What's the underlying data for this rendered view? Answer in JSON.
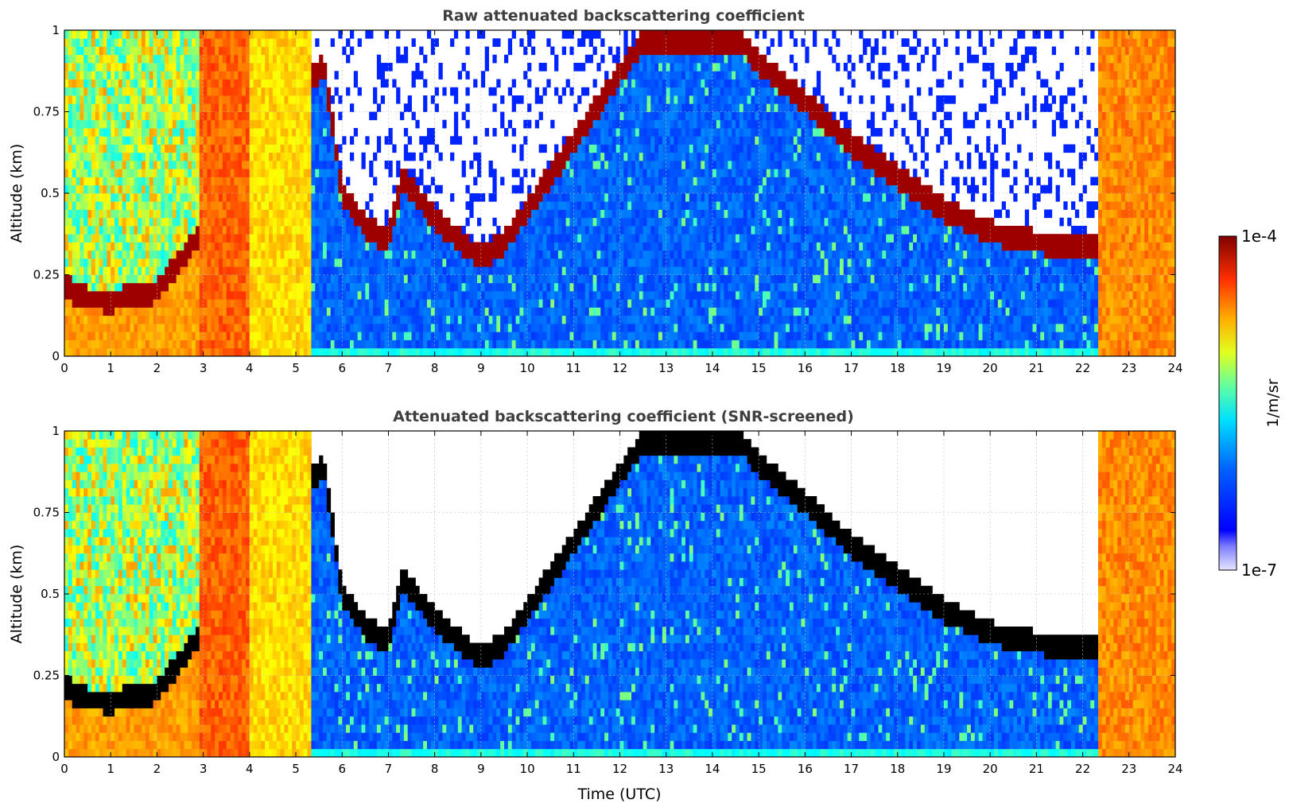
{
  "chart_data": [
    {
      "type": "heatmap",
      "title": "Raw attenuated backscattering coefficient",
      "xlabel": "",
      "ylabel": "Altitude (km)",
      "xlim": [
        0,
        24
      ],
      "ylim": [
        0,
        1
      ],
      "x_ticks": [
        "0",
        "1",
        "2",
        "3",
        "4",
        "5",
        "6",
        "7",
        "8",
        "9",
        "10",
        "11",
        "12",
        "13",
        "14",
        "15",
        "16",
        "17",
        "18",
        "19",
        "20",
        "21",
        "22",
        "23",
        "24"
      ],
      "y_ticks": [
        {
          "v": 0,
          "label": "0"
        },
        {
          "v": 0.25,
          "label": "0.25"
        },
        {
          "v": 0.5,
          "label": "0.5"
        },
        {
          "v": 0.75,
          "label": "0.75"
        },
        {
          "v": 1,
          "label": "1"
        }
      ],
      "grid": true,
      "screened": false,
      "cloud_layer": [
        [
          0.0,
          0.22
        ],
        [
          0.3,
          0.18
        ],
        [
          1.0,
          0.17
        ],
        [
          2.0,
          0.2
        ],
        [
          2.8,
          0.35
        ],
        [
          5.6,
          0.9
        ],
        [
          6.0,
          0.5
        ],
        [
          6.5,
          0.4
        ],
        [
          7.0,
          0.35
        ],
        [
          7.3,
          0.55
        ],
        [
          8.0,
          0.42
        ],
        [
          9.0,
          0.3
        ],
        [
          9.5,
          0.35
        ],
        [
          10.0,
          0.45
        ],
        [
          12.5,
          0.97
        ],
        [
          14.6,
          0.97
        ],
        [
          15.0,
          0.9
        ],
        [
          16.0,
          0.78
        ],
        [
          17.0,
          0.65
        ],
        [
          18.0,
          0.55
        ],
        [
          19.0,
          0.45
        ],
        [
          20.0,
          0.38
        ],
        [
          21.0,
          0.35
        ],
        [
          22.5,
          0.33
        ]
      ]
    },
    {
      "type": "heatmap",
      "title": "Attenuated backscattering coefficient (SNR-screened)",
      "xlabel": "Time (UTC)",
      "ylabel": "Altitude (km)",
      "xlim": [
        0,
        24
      ],
      "ylim": [
        0,
        1
      ],
      "x_ticks": [
        "0",
        "1",
        "2",
        "3",
        "4",
        "5",
        "6",
        "7",
        "8",
        "9",
        "10",
        "11",
        "12",
        "13",
        "14",
        "15",
        "16",
        "17",
        "18",
        "19",
        "20",
        "21",
        "22",
        "23",
        "24"
      ],
      "y_ticks": [
        {
          "v": 0,
          "label": "0"
        },
        {
          "v": 0.25,
          "label": "0.25"
        },
        {
          "v": 0.5,
          "label": "0.5"
        },
        {
          "v": 0.75,
          "label": "0.75"
        },
        {
          "v": 1,
          "label": "1"
        }
      ],
      "grid": true,
      "screened": true,
      "cloud_layer": [
        [
          0.0,
          0.22
        ],
        [
          0.3,
          0.18
        ],
        [
          1.0,
          0.17
        ],
        [
          2.0,
          0.2
        ],
        [
          2.8,
          0.35
        ],
        [
          5.6,
          0.9
        ],
        [
          6.0,
          0.5
        ],
        [
          6.5,
          0.4
        ],
        [
          7.0,
          0.35
        ],
        [
          7.3,
          0.55
        ],
        [
          8.0,
          0.42
        ],
        [
          9.0,
          0.3
        ],
        [
          9.5,
          0.35
        ],
        [
          10.0,
          0.45
        ],
        [
          12.5,
          0.97
        ],
        [
          14.6,
          0.97
        ],
        [
          15.0,
          0.9
        ],
        [
          16.0,
          0.78
        ],
        [
          17.0,
          0.65
        ],
        [
          18.0,
          0.55
        ],
        [
          19.0,
          0.45
        ],
        [
          20.0,
          0.38
        ],
        [
          21.0,
          0.35
        ],
        [
          22.5,
          0.33
        ]
      ]
    }
  ],
  "colorbar": {
    "min_label": "1e-7",
    "max_label": "1e-4",
    "unit_label": "1/m/sr",
    "scale": "log",
    "colormap": "jet"
  }
}
